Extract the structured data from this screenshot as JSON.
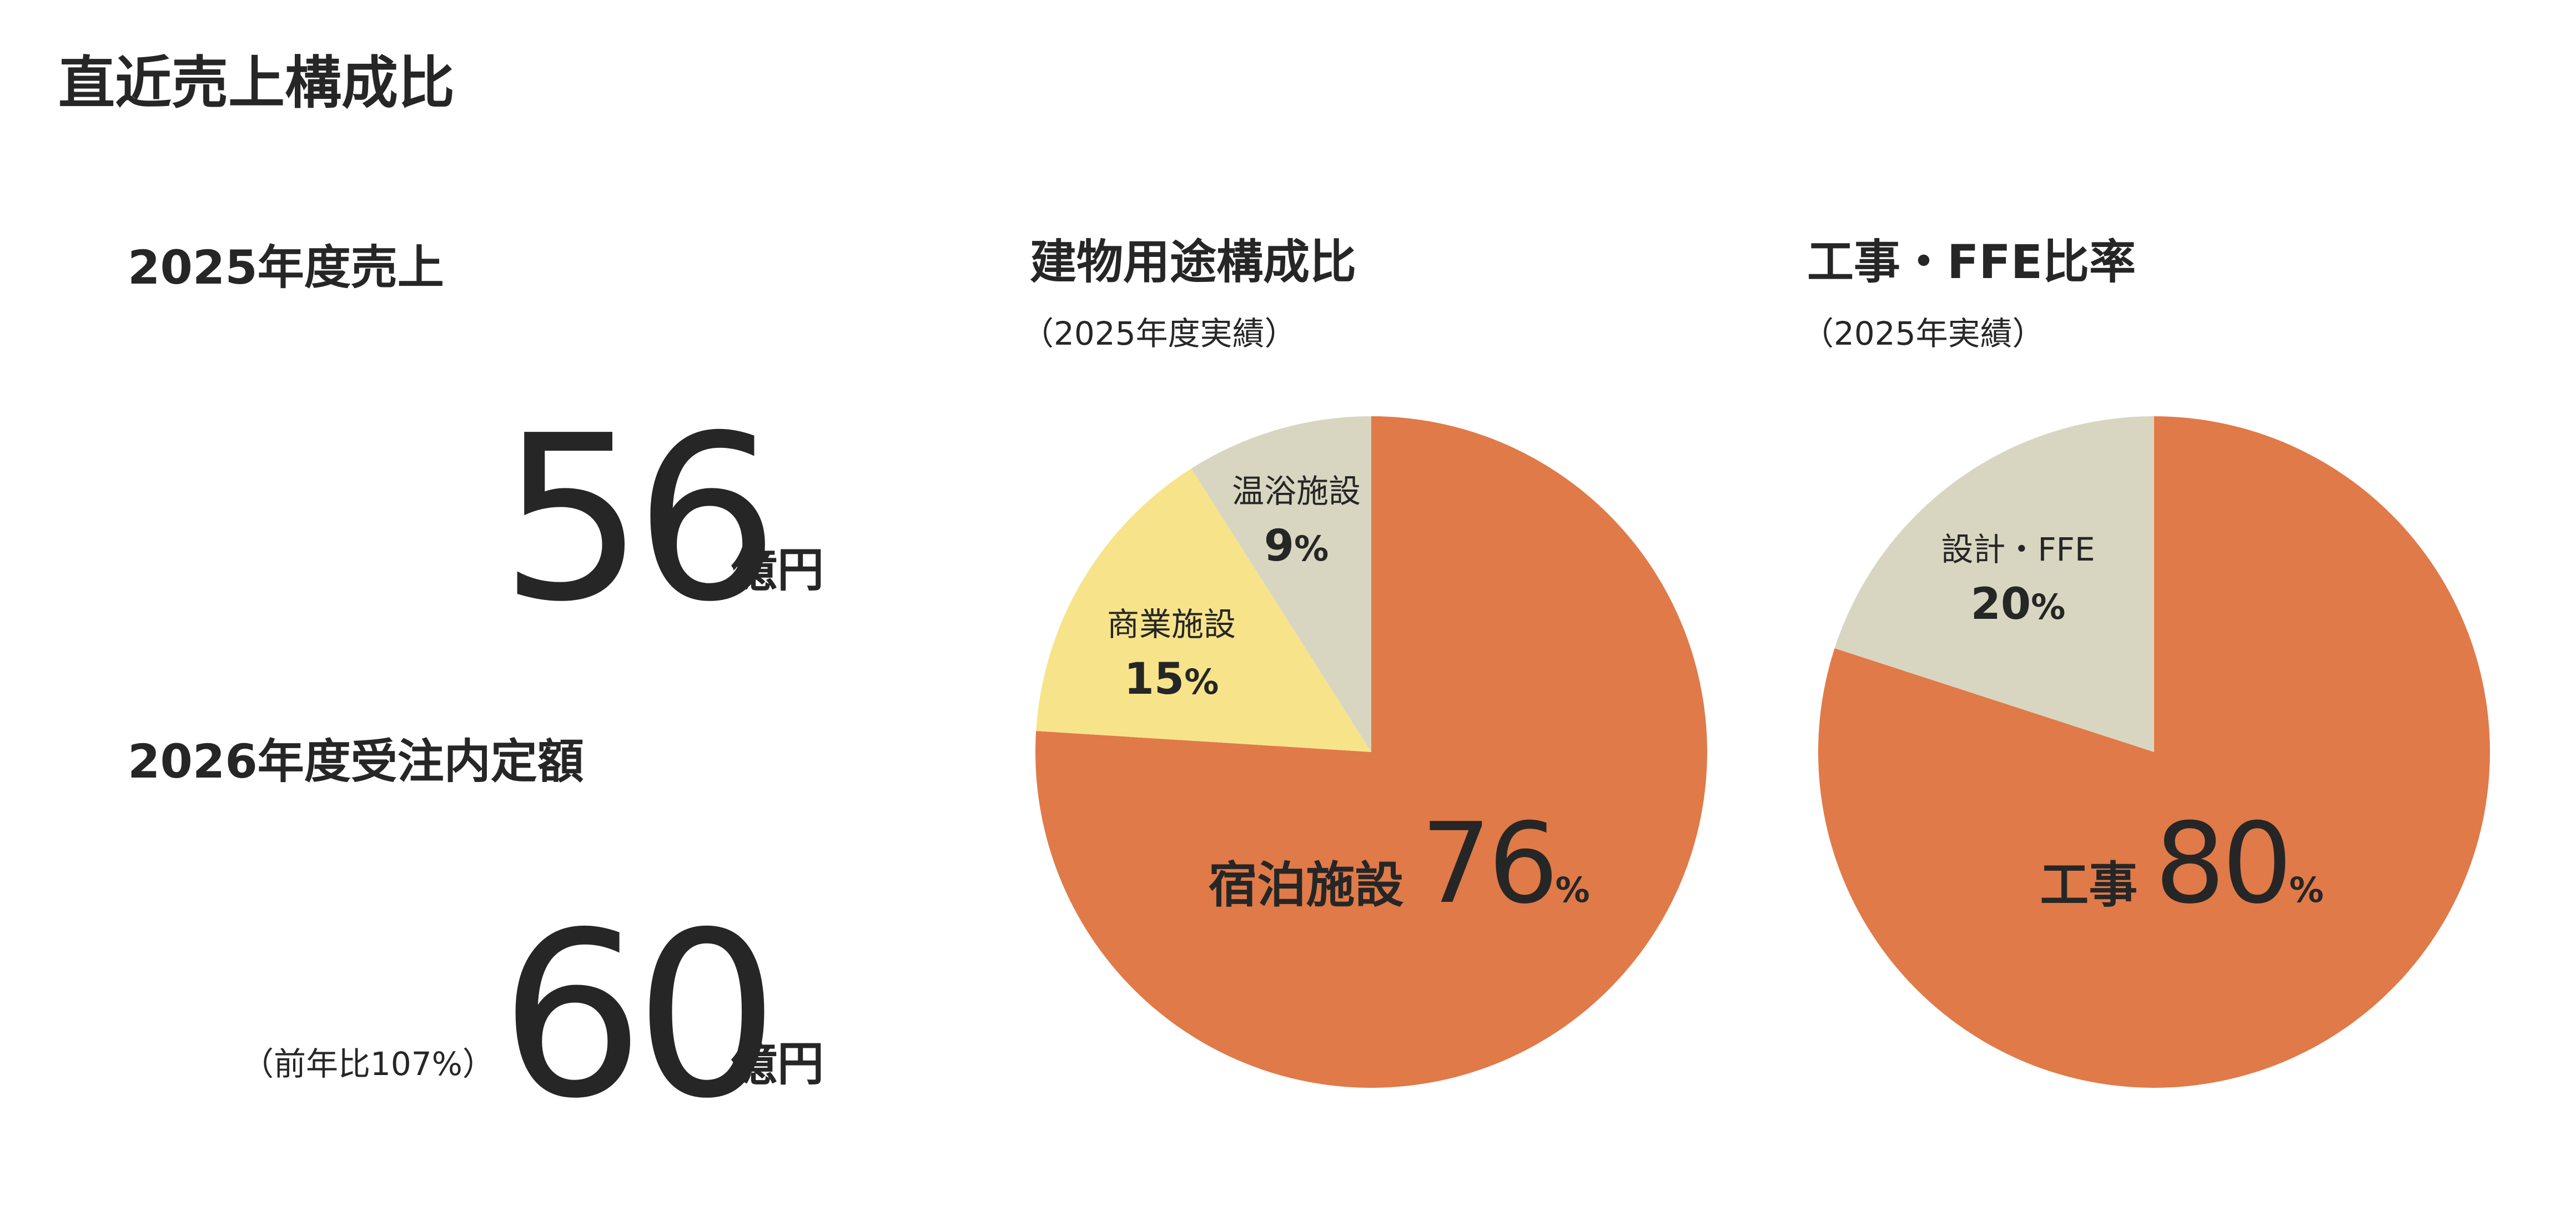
{
  "page_title": "直近売上構成比",
  "kpis": {
    "sales": {
      "heading": "2025年度売上",
      "value": "56",
      "unit": "億円"
    },
    "orders": {
      "heading": "2026年度受注内定額",
      "note": "（前年比107%）",
      "value": "60",
      "unit": "億円"
    }
  },
  "charts": {
    "usage": {
      "title": "建物用途構成比",
      "subtitle": "（2025年度実績）"
    },
    "ratio": {
      "title": "工事・FFE比率",
      "subtitle": "（2025年実績）"
    }
  },
  "chart_data": [
    {
      "type": "pie",
      "title": "建物用途構成比",
      "subtitle": "（2025年度実績）",
      "start_angle_deg": 0,
      "direction": "clockwise",
      "slices": [
        {
          "label": "宿泊施設",
          "value": 76,
          "color": "#E07A48"
        },
        {
          "label": "商業施設",
          "value": 15,
          "color": "#F7E48A"
        },
        {
          "label": "温浴施設",
          "value": 9,
          "color": "#D8D6C1"
        }
      ]
    },
    {
      "type": "pie",
      "title": "工事・FFE比率",
      "subtitle": "（2025年実績）",
      "start_angle_deg": 0,
      "direction": "clockwise",
      "slices": [
        {
          "label": "工事",
          "value": 80,
          "color": "#E07A48"
        },
        {
          "label": "設計・FFE",
          "value": 20,
          "color": "#D8D6C1"
        }
      ]
    }
  ],
  "pct_sign": "%"
}
